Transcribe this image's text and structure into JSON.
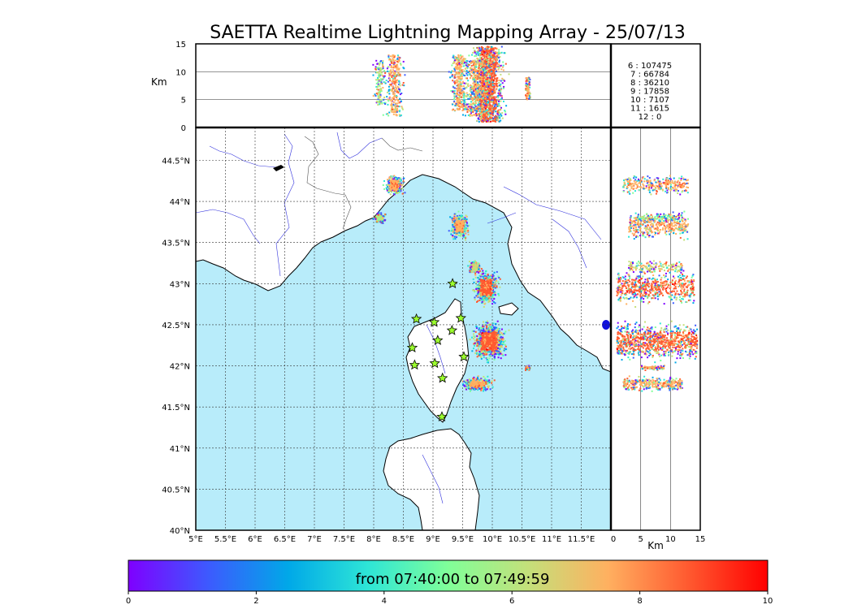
{
  "chart_data": {
    "type": "scatter",
    "title": "SAETTA Realtime Lightning Mapping Array - 25/07/13",
    "map": {
      "lon_range": [
        5,
        12
      ],
      "lat_range": [
        40,
        44.9
      ],
      "x_tick_labels": [
        "5°E",
        "5.5°E",
        "6°E",
        "6.5°E",
        "7°E",
        "7.5°E",
        "8°E",
        "8.5°E",
        "9°E",
        "9.5°E",
        "10°E",
        "10.5°E",
        "11°E",
        "11.5°E"
      ],
      "y_tick_labels": [
        "40°N",
        "40.5°N",
        "41°N",
        "41.5°N",
        "42°N",
        "42.5°N",
        "43°N",
        "43.5°N",
        "44°N",
        "44.5°N"
      ],
      "grid": "dotted",
      "sea_color": "#b8ecfa",
      "land_color": "#ffffff"
    },
    "altitude_panel": {
      "ylabel": "Km",
      "ylim": [
        0,
        15
      ],
      "y_tick_labels": [
        "0",
        "5",
        "10",
        "15"
      ]
    },
    "side_panel": {
      "xlabel": "Km",
      "xlim": [
        0,
        15
      ],
      "x_tick_labels": [
        "0",
        "5",
        "10",
        "15"
      ]
    },
    "station_counts": {
      "rows": [
        {
          "label": "6  :   107475",
          "color": "#ff0000"
        },
        {
          "label": "7  :     66784",
          "color": "#000000"
        },
        {
          "label": "8  :     36210",
          "color": "#000000"
        },
        {
          "label": "9  :     17858",
          "color": "#000000"
        },
        {
          "label": "10  :      7107",
          "color": "#000000"
        },
        {
          "label": "11  :      1615",
          "color": "#000000"
        },
        {
          "label": "12  :         0",
          "color": "#000000"
        }
      ]
    },
    "colorbar": {
      "label": "from 07:40:00 to 07:49:59",
      "range": [
        0,
        10
      ],
      "tick_labels": [
        "0",
        "2",
        "4",
        "6",
        "8",
        "10"
      ],
      "colors": [
        "#7f00ff",
        "#3d5afe",
        "#00a8e8",
        "#2ee6d6",
        "#80ff99",
        "#c4e07a",
        "#ffb060",
        "#ff5a30",
        "#ff0000"
      ]
    },
    "stations": [
      {
        "lon": 8.72,
        "lat": 42.57
      },
      {
        "lon": 9.02,
        "lat": 42.53
      },
      {
        "lon": 9.47,
        "lat": 42.58
      },
      {
        "lon": 9.32,
        "lat": 42.43
      },
      {
        "lon": 9.08,
        "lat": 42.31
      },
      {
        "lon": 8.65,
        "lat": 42.22
      },
      {
        "lon": 9.52,
        "lat": 42.11
      },
      {
        "lon": 8.69,
        "lat": 42.01
      },
      {
        "lon": 9.03,
        "lat": 42.03
      },
      {
        "lon": 9.16,
        "lat": 41.85
      },
      {
        "lon": 9.15,
        "lat": 41.38
      },
      {
        "lon": 9.33,
        "lat": 43.0
      }
    ],
    "lightning_clusters": [
      {
        "lon": 8.35,
        "lat": 44.2,
        "extent": [
          0.15,
          0.12
        ],
        "alt": [
          2,
          13
        ],
        "time": 8
      },
      {
        "lon": 8.1,
        "lat": 43.8,
        "extent": [
          0.1,
          0.06
        ],
        "alt": [
          4,
          12
        ],
        "time": 6
      },
      {
        "lon": 9.45,
        "lat": 43.7,
        "extent": [
          0.15,
          0.15
        ],
        "alt": [
          3,
          13
        ],
        "time": 8
      },
      {
        "lon": 9.7,
        "lat": 43.2,
        "extent": [
          0.1,
          0.08
        ],
        "alt": [
          3,
          12
        ],
        "time": 7
      },
      {
        "lon": 9.9,
        "lat": 42.95,
        "extent": [
          0.2,
          0.2
        ],
        "alt": [
          1,
          14
        ],
        "time": 9
      },
      {
        "lon": 9.95,
        "lat": 42.3,
        "extent": [
          0.28,
          0.22
        ],
        "alt": [
          1,
          14.5
        ],
        "time": 9
      },
      {
        "lon": 9.75,
        "lat": 41.78,
        "extent": [
          0.25,
          0.08
        ],
        "alt": [
          2,
          12
        ],
        "time": 8
      },
      {
        "lon": 10.6,
        "lat": 41.98,
        "extent": [
          0.05,
          0.03
        ],
        "alt": [
          5,
          9
        ],
        "time": 8
      }
    ]
  }
}
